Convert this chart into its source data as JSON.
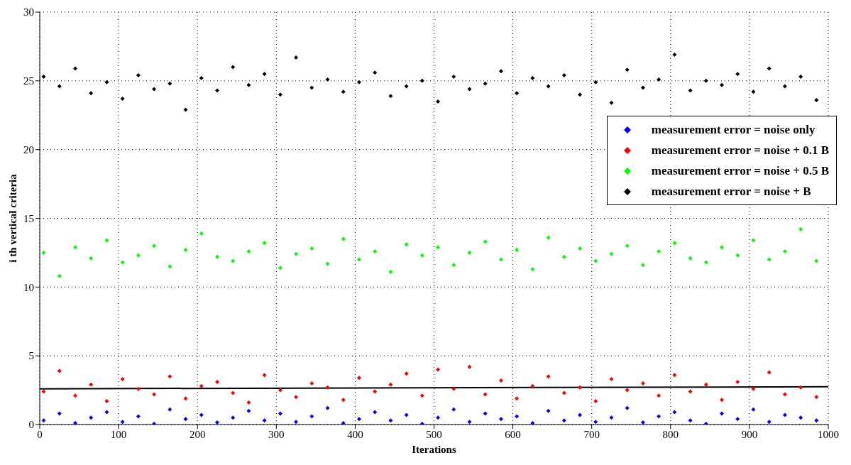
{
  "chart_data": {
    "type": "scatter",
    "xlabel": "Iterations",
    "ylabel": "i th vertical criteria",
    "x": [
      5,
      25,
      45,
      65,
      85,
      105,
      125,
      145,
      165,
      185,
      205,
      225,
      245,
      265,
      285,
      305,
      325,
      345,
      365,
      385,
      405,
      425,
      445,
      465,
      485,
      505,
      525,
      545,
      565,
      585,
      605,
      625,
      645,
      665,
      685,
      705,
      725,
      745,
      765,
      785,
      805,
      825,
      845,
      865,
      885,
      905,
      925,
      945,
      965,
      985
    ],
    "series": [
      {
        "name": "measurement error = noise only",
        "color": "#0000ff",
        "values": [
          0.3,
          0.8,
          0.1,
          0.5,
          0.9,
          0.2,
          0.6,
          0.05,
          1.1,
          0.4,
          0.7,
          0.15,
          0.5,
          1.0,
          0.3,
          0.8,
          0.2,
          0.6,
          1.2,
          0.1,
          0.4,
          0.9,
          0.3,
          0.7,
          0.05,
          0.5,
          1.1,
          0.2,
          0.8,
          0.4,
          0.6,
          0.1,
          1.0,
          0.3,
          0.7,
          0.2,
          0.5,
          1.2,
          0.15,
          0.6,
          0.9,
          0.3,
          0.05,
          0.8,
          0.4,
          1.1,
          0.2,
          0.7,
          0.5,
          0.3
        ]
      },
      {
        "name": "measurement error = noise + 0.1 B",
        "color": "#ff0000",
        "values": [
          2.4,
          3.9,
          2.1,
          2.9,
          1.7,
          3.3,
          2.6,
          2.2,
          3.5,
          1.9,
          2.8,
          3.1,
          2.3,
          1.6,
          3.6,
          2.5,
          2.0,
          3.0,
          2.7,
          1.8,
          3.4,
          2.4,
          2.9,
          3.7,
          2.1,
          4.0,
          2.6,
          4.2,
          2.2,
          3.2,
          1.9,
          2.8,
          3.5,
          2.3,
          2.7,
          1.7,
          3.3,
          2.5,
          3.0,
          2.1,
          3.6,
          2.4,
          2.9,
          1.8,
          3.1,
          2.6,
          3.8,
          2.2,
          2.7,
          2.0
        ]
      },
      {
        "name": "measurement error = noise + 0.5 B",
        "color": "#00ff00",
        "values": [
          12.5,
          10.8,
          12.9,
          12.1,
          13.4,
          11.8,
          12.3,
          13.0,
          11.5,
          12.7,
          13.9,
          12.2,
          11.9,
          12.6,
          13.2,
          11.4,
          12.4,
          12.8,
          11.7,
          13.5,
          12.0,
          12.6,
          11.1,
          13.1,
          12.3,
          12.9,
          11.6,
          12.5,
          13.3,
          12.0,
          12.7,
          11.3,
          13.6,
          12.2,
          12.8,
          11.9,
          12.4,
          13.0,
          11.6,
          12.6,
          13.2,
          12.1,
          11.8,
          12.9,
          12.3,
          13.4,
          12.0,
          12.6,
          14.2,
          11.9
        ]
      },
      {
        "name": "measurement error = noise + B",
        "color": "#000000",
        "values": [
          25.3,
          24.6,
          25.9,
          24.1,
          24.9,
          23.7,
          25.4,
          24.4,
          24.8,
          22.9,
          25.2,
          24.3,
          26.0,
          24.7,
          25.5,
          24.0,
          26.7,
          24.5,
          25.1,
          24.2,
          24.9,
          25.6,
          23.9,
          24.6,
          25.0,
          23.5,
          25.3,
          24.4,
          24.8,
          25.7,
          24.1,
          25.2,
          24.6,
          25.4,
          24.0,
          24.9,
          23.4,
          25.8,
          24.5,
          25.1,
          26.9,
          24.3,
          25.0,
          24.7,
          25.5,
          24.2,
          25.9,
          24.6,
          25.3,
          23.6
        ]
      },
      {
        "type": "line",
        "color": "#000000",
        "marker": "none",
        "x": [
          0,
          1000
        ],
        "values": [
          2.6,
          2.75
        ]
      }
    ],
    "xlim": [
      0,
      1000
    ],
    "xticks": [
      0,
      100,
      200,
      300,
      400,
      500,
      600,
      700,
      800,
      900,
      1000
    ],
    "ylim": [
      0,
      30
    ],
    "yticks": [
      0,
      5,
      10,
      15,
      20,
      25,
      30
    ],
    "grid": true,
    "legend": "top right",
    "marker": "diamond"
  }
}
